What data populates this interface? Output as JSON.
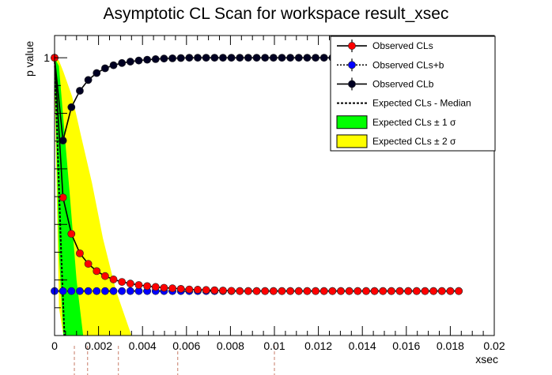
{
  "chart_data": {
    "type": "line",
    "title": "Asymptotic CL Scan for workspace result_xsec",
    "xlabel": "xsec",
    "ylabel": "p value",
    "xlim": [
      0,
      0.02
    ],
    "ylim": [
      0,
      1.08
    ],
    "x_ticks": [
      "0",
      "0.002",
      "0.004",
      "0.006",
      "0.008",
      "0.01",
      "0.012",
      "0.014",
      "0.016",
      "0.018",
      "0.02"
    ],
    "y_ticks": [
      "1"
    ],
    "legend_position": "top-right",
    "legend": [
      {
        "key": "cls",
        "label": "Observed CLs"
      },
      {
        "key": "clsb",
        "label": "Observed CLs+b"
      },
      {
        "key": "clb",
        "label": "Observed CLb"
      },
      {
        "key": "median",
        "label": "Expected CLs - Median"
      },
      {
        "key": "band1",
        "label": "Expected CLs ± 1 σ"
      },
      {
        "key": "band2",
        "label": "Expected CLs ± 2 σ"
      }
    ],
    "colors": {
      "cls": "#ff0000",
      "clsb": "#0000ff",
      "clb": "#000022",
      "band1": "#00ff00",
      "band2": "#ffff00",
      "limit_lines": "#d49a8a"
    },
    "x": [
      0,
      0.000383,
      0.000766,
      0.001149,
      0.001532,
      0.001915,
      0.002298,
      0.002681,
      0.003064,
      0.003447,
      0.00383,
      0.004213,
      0.004596,
      0.004979,
      0.005362,
      0.005745,
      0.006128,
      0.006511,
      0.006894,
      0.007277,
      0.00766,
      0.008043,
      0.008426,
      0.008809,
      0.009192,
      0.009575,
      0.009958,
      0.010341,
      0.010724,
      0.011107,
      0.01149,
      0.011873,
      0.012256,
      0.012639,
      0.013022,
      0.013405,
      0.013788,
      0.014171,
      0.014554,
      0.014937,
      0.01532,
      0.015703,
      0.016086,
      0.016469,
      0.016852,
      0.017235,
      0.017618,
      0.018001,
      0.018384
    ],
    "series": [
      {
        "key": "cls",
        "name": "Observed CLs",
        "values": [
          1.0,
          0.497,
          0.366,
          0.296,
          0.258,
          0.232,
          0.214,
          0.202,
          0.193,
          0.187,
          0.182,
          0.178,
          0.175,
          0.172,
          0.17,
          0.168,
          0.166,
          0.165,
          0.164,
          0.163,
          0.162,
          0.161,
          0.16,
          0.16,
          0.16,
          0.16,
          0.16,
          0.16,
          0.16,
          0.16,
          0.16,
          0.16,
          0.16,
          0.16,
          0.16,
          0.16,
          0.16,
          0.16,
          0.16,
          0.16,
          0.16,
          0.16,
          0.16,
          0.16,
          0.16,
          0.16,
          0.16,
          0.16,
          0.16
        ]
      },
      {
        "key": "clsb",
        "name": "Observed CLs+b",
        "values": [
          0.16,
          0.16,
          0.16,
          0.16,
          0.16,
          0.16,
          0.16,
          0.16,
          0.16,
          0.16,
          0.16,
          0.16,
          0.16,
          0.16,
          0.16,
          0.16,
          0.16,
          0.16,
          0.16,
          0.16,
          0.16,
          0.16,
          0.16,
          0.16,
          0.16,
          0.16,
          0.16,
          0.16,
          0.16,
          0.16,
          0.16,
          0.16,
          0.16,
          0.16,
          0.16,
          0.16,
          0.16,
          0.16,
          0.16,
          0.16,
          0.16,
          0.16,
          0.16,
          0.16,
          0.16,
          0.16,
          0.16,
          0.16,
          0.16
        ]
      },
      {
        "key": "clb",
        "name": "Observed CLb",
        "values": [
          1.0,
          0.702,
          0.822,
          0.881,
          0.92,
          0.945,
          0.962,
          0.973,
          0.981,
          0.986,
          0.99,
          0.993,
          0.995,
          0.997,
          0.998,
          0.999,
          1.0,
          1.0,
          1.0,
          1.0,
          1.0,
          1.0,
          1.0,
          1.0,
          1.0,
          1.0,
          1.0,
          1.0,
          1.0,
          1.0,
          1.0,
          1.0,
          1.0,
          1.0,
          1.0,
          1.0,
          1.0,
          1.0,
          1.0,
          1.0,
          1.0,
          1.0,
          1.0,
          1.0,
          1.0,
          1.0,
          1.0,
          1.0,
          1.0
        ]
      }
    ],
    "expected_median": {
      "x": [
        0,
        0.0003,
        0.00045
      ],
      "y": [
        1.0,
        0.3,
        0.0
      ]
    },
    "band_1sigma": {
      "x": [
        0,
        0.0002,
        0.0004,
        0.0007,
        0.001,
        0.0013
      ],
      "y_low": [
        0.97,
        0.3,
        0.0,
        0.0,
        0.0,
        0.0
      ],
      "y_high": [
        1.0,
        0.97,
        0.78,
        0.5,
        0.2,
        0.0
      ]
    },
    "band_2sigma": {
      "x": [
        0,
        0.0002,
        0.0004,
        0.0008,
        0.0012,
        0.0017,
        0.0022,
        0.0028,
        0.0035
      ],
      "y_low": [
        0.92,
        0.1,
        0.0,
        0.0,
        0.0,
        0.0,
        0.0,
        0.0,
        0.0
      ],
      "y_high": [
        1.0,
        0.99,
        0.95,
        0.86,
        0.72,
        0.55,
        0.35,
        0.16,
        0.0
      ]
    },
    "limit_markers_x": [
      0.0009,
      0.0015,
      0.0029,
      0.0056,
      0.01
    ]
  }
}
